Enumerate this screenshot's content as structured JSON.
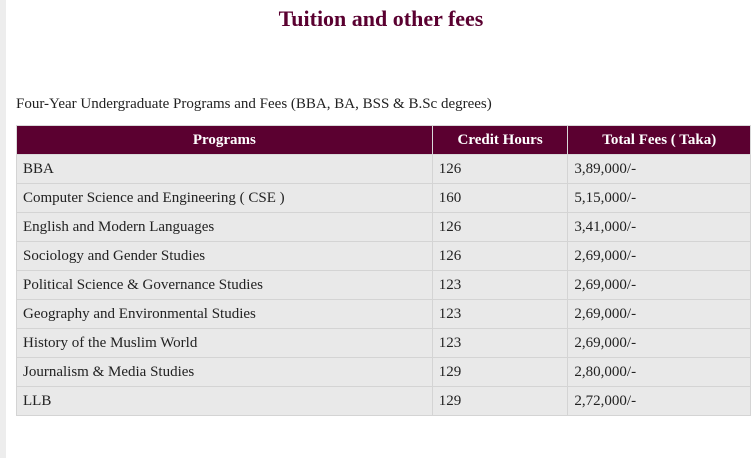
{
  "page": {
    "title": "Tuition and other fees",
    "subtitle": "Four-Year Undergraduate Programs and Fees (BBA, BA, BSS & B.Sc degrees)"
  },
  "table": {
    "headers": [
      "Programs",
      "Credit Hours",
      "Total Fees ( Taka)"
    ],
    "rows": [
      [
        "BBA",
        "126",
        "3,89,000/-"
      ],
      [
        "Computer Science and Engineering ( CSE )",
        "160",
        "5,15,000/-"
      ],
      [
        "English and Modern Languages",
        "126",
        "3,41,000/-"
      ],
      [
        "Sociology and Gender Studies",
        "126",
        "2,69,000/-"
      ],
      [
        "Political Science & Governance Studies",
        "123",
        "2,69,000/-"
      ],
      [
        "Geography and Environmental Studies",
        "123",
        "2,69,000/-"
      ],
      [
        "History of the Muslim World",
        "123",
        "2,69,000/-"
      ],
      [
        "Journalism & Media Studies",
        "129",
        "2,80,000/-"
      ],
      [
        "LLB",
        "129",
        "2,72,000/-"
      ]
    ]
  },
  "colors": {
    "title": "#5a0030",
    "header_bg": "#5b0030",
    "row_bg": "#e9e9e9"
  }
}
